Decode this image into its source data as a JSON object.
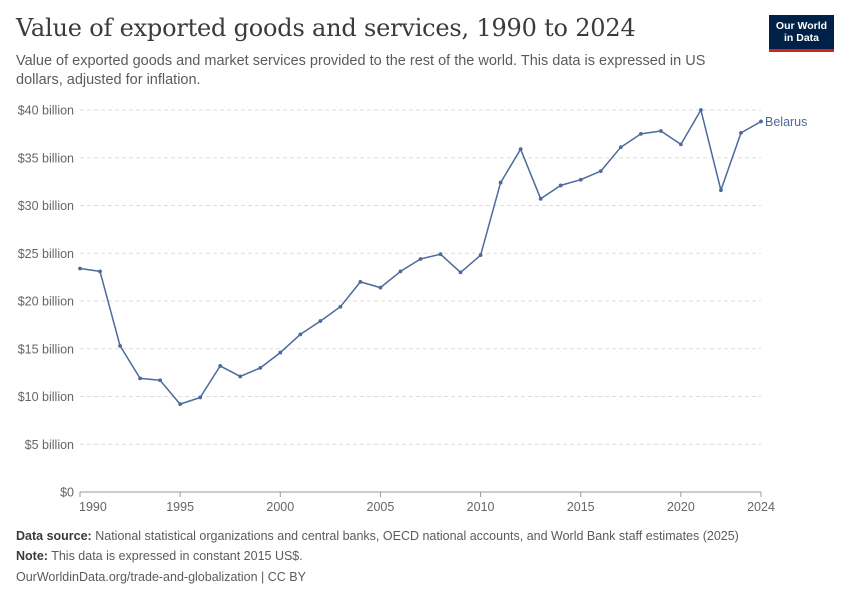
{
  "header": {
    "title": "Value of exported goods and services, 1990 to 2024",
    "subtitle": "Value of exported goods and market services provided to the rest of the world. This data is expressed in US dollars, adjusted for inflation.",
    "logo_line1": "Our World",
    "logo_line2": "in Data"
  },
  "footer": {
    "source_label": "Data source:",
    "source_text": "National statistical organizations and central banks, OECD national accounts, and World Bank staff estimates (2025)",
    "note_label": "Note:",
    "note_text": "This data is expressed in constant 2015 US$.",
    "credit": "OurWorldinData.org/trade-and-globalization | CC BY"
  },
  "colors": {
    "series": "#4c6a9c",
    "grid": "#dddddd",
    "axis": "#999999",
    "logo_bg": "#002147",
    "logo_accent": "#ce261e"
  },
  "chart_data": {
    "type": "line",
    "title": "Value of exported goods and services, 1990 to 2024",
    "xlabel": "",
    "ylabel": "",
    "xlim": [
      1990,
      2024
    ],
    "ylim": [
      0,
      40
    ],
    "unit": "billion US$",
    "grid": "horizontal dashed",
    "x_ticks": [
      {
        "value": 1990,
        "label": "1990"
      },
      {
        "value": 1995,
        "label": "1995"
      },
      {
        "value": 2000,
        "label": "2000"
      },
      {
        "value": 2005,
        "label": "2005"
      },
      {
        "value": 2010,
        "label": "2010"
      },
      {
        "value": 2015,
        "label": "2015"
      },
      {
        "value": 2020,
        "label": "2020"
      },
      {
        "value": 2024,
        "label": "2024"
      }
    ],
    "y_ticks": [
      {
        "value": 0,
        "label": "$0"
      },
      {
        "value": 5,
        "label": "$5 billion"
      },
      {
        "value": 10,
        "label": "$10 billion"
      },
      {
        "value": 15,
        "label": "$15 billion"
      },
      {
        "value": 20,
        "label": "$20 billion"
      },
      {
        "value": 25,
        "label": "$25 billion"
      },
      {
        "value": 30,
        "label": "$30 billion"
      },
      {
        "value": 35,
        "label": "$35 billion"
      },
      {
        "value": 40,
        "label": "$40 billion"
      }
    ],
    "series": [
      {
        "name": "Belarus",
        "x": [
          1990,
          1991,
          1992,
          1993,
          1994,
          1995,
          1996,
          1997,
          1998,
          1999,
          2000,
          2001,
          2002,
          2003,
          2004,
          2005,
          2006,
          2007,
          2008,
          2009,
          2010,
          2011,
          2012,
          2013,
          2014,
          2015,
          2016,
          2017,
          2018,
          2019,
          2020,
          2021,
          2022,
          2023,
          2024
        ],
        "values": [
          23.4,
          23.1,
          15.3,
          11.9,
          11.7,
          9.2,
          9.9,
          13.2,
          12.1,
          13.0,
          14.6,
          16.5,
          17.9,
          19.4,
          22.0,
          21.4,
          23.1,
          24.4,
          24.9,
          23.0,
          24.8,
          32.4,
          35.9,
          30.7,
          32.1,
          32.7,
          33.6,
          36.1,
          37.5,
          37.8,
          36.4,
          40.0,
          31.6,
          37.6,
          38.8
        ]
      }
    ]
  }
}
